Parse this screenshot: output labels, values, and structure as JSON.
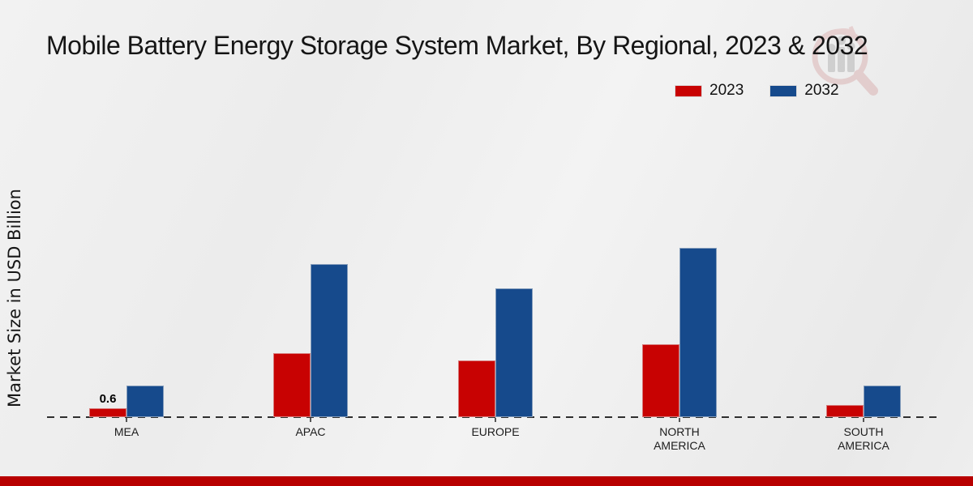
{
  "title": "Mobile Battery Energy Storage System Market, By Regional, 2023 & 2032",
  "ylabel": "Market Size in USD Billion",
  "legend": [
    {
      "label": "2023",
      "color": "#c80202"
    },
    {
      "label": "2032",
      "color": "#164a8c"
    }
  ],
  "footer": {
    "color": "#b80000"
  },
  "watermark_icon": "mrfr-logo-watermark",
  "chart_data": {
    "type": "bar",
    "title": "Mobile Battery Energy Storage System Market, By Regional, 2023 & 2032",
    "xlabel": "",
    "ylabel": "Market Size in USD Billion",
    "categories": [
      "MEA",
      "APAC",
      "EUROPE",
      "NORTH AMERICA",
      "SOUTH AMERICA"
    ],
    "categories_display": [
      "MEA",
      "APAC",
      "EUROPE",
      "NORTH\nAMERICA",
      "SOUTH\nAMERICA"
    ],
    "series": [
      {
        "name": "2023",
        "color": "#c80202",
        "values": [
          0.6,
          4.3,
          3.8,
          4.9,
          0.8
        ],
        "data_labels": [
          "0.6",
          "",
          "",
          "",
          ""
        ]
      },
      {
        "name": "2032",
        "color": "#164a8c",
        "values": [
          2.1,
          10.3,
          8.7,
          11.4,
          2.1
        ],
        "data_labels": [
          "",
          "",
          "",
          "",
          ""
        ]
      }
    ],
    "ylim": [
      0,
      12
    ],
    "grid": false,
    "axis_line": "dashed",
    "legend_position": "top-right",
    "units": "USD Billion"
  }
}
